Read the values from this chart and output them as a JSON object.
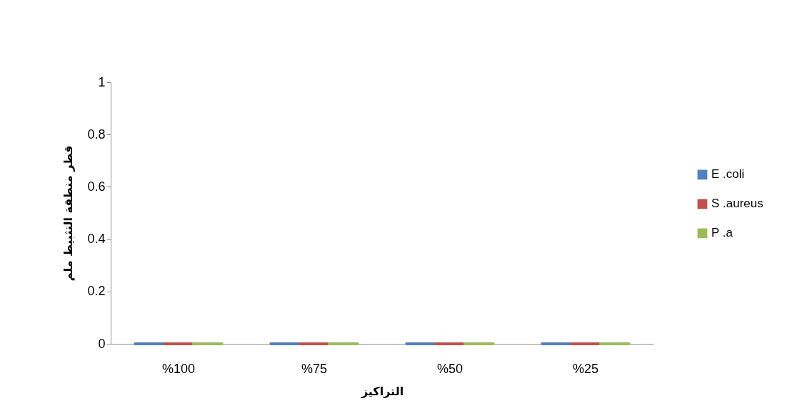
{
  "chart_data": {
    "type": "bar",
    "categories": [
      "%100",
      "%75",
      "%50",
      "%25"
    ],
    "series": [
      {
        "name": "E .coli",
        "color": "#4f81bd",
        "values": [
          0,
          0,
          0,
          0
        ]
      },
      {
        "name": "S .aureus",
        "color": "#c0504d",
        "values": [
          0,
          0,
          0,
          0
        ]
      },
      {
        "name": "P .a",
        "color": "#9bbb59",
        "values": [
          0,
          0,
          0,
          0
        ]
      }
    ],
    "xlabel": "التراكيز",
    "ylabel": "قطر منطقة التثبيط ملم",
    "ylim": [
      0,
      1
    ],
    "yticks": [
      0,
      0.2,
      0.4,
      0.6,
      0.8,
      1
    ],
    "grid": false,
    "legend": "right"
  }
}
